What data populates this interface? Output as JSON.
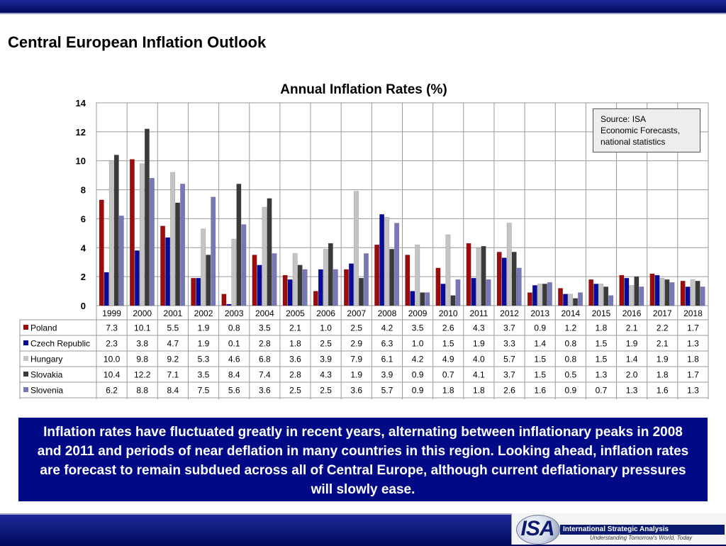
{
  "slide": {
    "title": "Central European Inflation Outlook",
    "summary": "Inflation rates have fluctuated greatly in recent years, alternating between inflationary peaks in 2008 and 2011 and periods of near deflation in many countries in this region. Looking ahead, inflation rates are forecast to remain subdued across all of Central Europe, although current deflationary pressures will slowly ease.",
    "source_note": "Source: ISA\nEconomic Forecasts,\nnational statistics",
    "logo_abbr": "ISA",
    "logo_name": "International Strategic Analysis",
    "logo_tagline": "Understanding Tomorrow's World, Today",
    "colors": {
      "bar_fill": "#010a5a",
      "summary_bg": "#000a87"
    }
  },
  "chart_data": {
    "type": "bar",
    "title": "Annual Inflation Rates (%)",
    "categories": [
      "1999",
      "2000",
      "2001",
      "2002",
      "2003",
      "2004",
      "2005",
      "2006",
      "2007",
      "2008",
      "2009",
      "2010",
      "2011",
      "2012",
      "2013",
      "2014",
      "2015",
      "2016",
      "2017",
      "2018"
    ],
    "ylim": [
      0,
      14
    ],
    "yticks": [
      0,
      2,
      4,
      6,
      8,
      10,
      12,
      14
    ],
    "grid": true,
    "legend": "data-table-below",
    "series": [
      {
        "name": "Poland",
        "color": "#9b0c0c",
        "values": [
          7.3,
          10.1,
          5.5,
          1.9,
          0.8,
          3.5,
          2.1,
          1.0,
          2.5,
          4.2,
          3.5,
          2.6,
          4.3,
          3.7,
          0.9,
          1.2,
          1.8,
          2.1,
          2.2,
          1.7
        ]
      },
      {
        "name": "Czech Republic",
        "color": "#0a0a9a",
        "values": [
          2.3,
          3.8,
          4.7,
          1.9,
          0.1,
          2.8,
          1.8,
          2.5,
          2.9,
          6.3,
          1.0,
          1.5,
          1.9,
          3.3,
          1.4,
          0.8,
          1.5,
          1.9,
          2.1,
          1.3
        ]
      },
      {
        "name": "Hungary",
        "color": "#c4c4c4",
        "values": [
          10.0,
          9.8,
          9.2,
          5.3,
          4.6,
          6.8,
          3.6,
          3.9,
          7.9,
          6.1,
          4.2,
          4.9,
          4.0,
          5.7,
          1.5,
          0.8,
          1.5,
          1.4,
          1.9,
          1.8
        ]
      },
      {
        "name": "Slovakia",
        "color": "#3a3a3a",
        "values": [
          10.4,
          12.2,
          7.1,
          3.5,
          8.4,
          7.4,
          2.8,
          4.3,
          1.9,
          3.9,
          0.9,
          0.7,
          4.1,
          3.7,
          1.5,
          0.5,
          1.3,
          2.0,
          1.8,
          1.7
        ]
      },
      {
        "name": "Slovenia",
        "color": "#7878b8",
        "values": [
          6.2,
          8.8,
          8.4,
          7.5,
          5.6,
          3.6,
          2.5,
          2.5,
          3.6,
          5.7,
          0.9,
          1.8,
          1.8,
          2.6,
          1.6,
          0.9,
          0.7,
          1.3,
          1.6,
          1.3
        ]
      }
    ]
  }
}
